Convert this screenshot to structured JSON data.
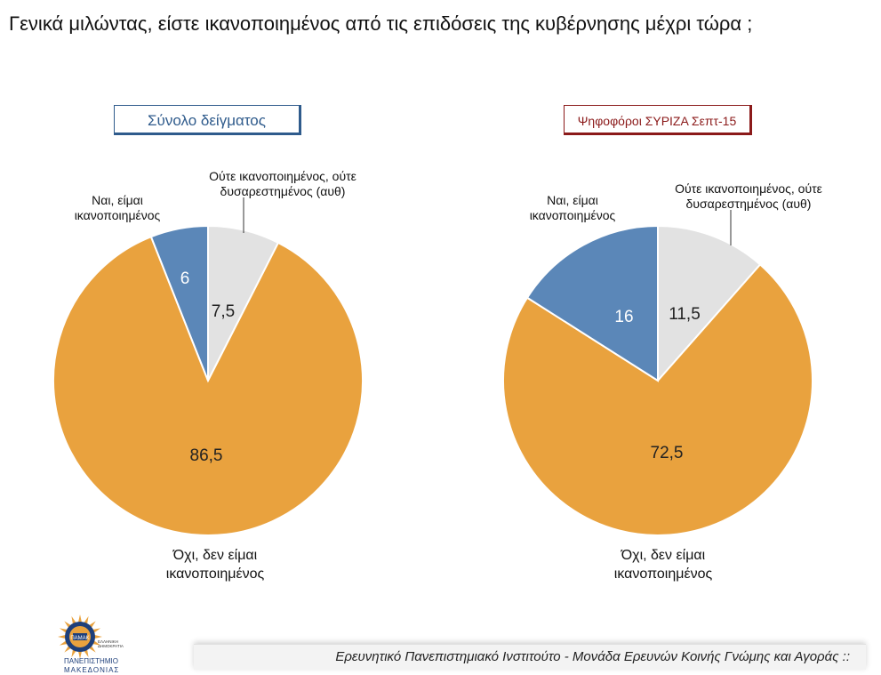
{
  "page": {
    "title": "Γενικά μιλώντας, είστε ικανοποιημένος από τις επιδόσεις της κυβέρνησης μέχρι τώρα ;"
  },
  "panels": [
    {
      "label": "Σύνολο δείγματος",
      "color": "#2F5B8C"
    },
    {
      "label": "Ψηφοφόροι ΣΥΡΙΖΑ Σεπτ-15",
      "color": "#8B1A1A"
    }
  ],
  "chart_data": [
    {
      "type": "pie",
      "title": "Σύνολο δείγματος",
      "categories": [
        "Ναι, είμαι ικανοποιημένος",
        "Ούτε ικανοποιημένος, ούτε δυσαρεστημένος (αυθ)",
        "Όχι, δεν είμαι ικανοποιημένος"
      ],
      "values": [
        6,
        7.5,
        86.5
      ],
      "value_labels": [
        "6",
        "7,5",
        "86,5"
      ],
      "colors": [
        "#5B87B8",
        "#E2E2E2",
        "#E9A23E"
      ],
      "label_lines": {
        "yes": [
          "Ναι, είμαι",
          "ικανοποιημένος"
        ],
        "neutral": [
          "Ούτε ικανοποιημένος, ούτε",
          "δυσαρεστημένος (αυθ)"
        ],
        "no": [
          "Όχι, δεν είμαι",
          "ικανοποιημένος"
        ]
      }
    },
    {
      "type": "pie",
      "title": "Ψηφοφόροι ΣΥΡΙΖΑ Σεπτ-15",
      "categories": [
        "Ναι, είμαι ικανοποιημένος",
        "Ούτε ικανοποιημένος, ούτε δυσαρεστημένος (αυθ)",
        "Όχι, δεν είμαι ικανοποιημένος"
      ],
      "values": [
        16,
        11.5,
        72.5
      ],
      "value_labels": [
        "16",
        "11,5",
        "72,5"
      ],
      "colors": [
        "#5B87B8",
        "#E2E2E2",
        "#E9A23E"
      ],
      "label_lines": {
        "yes": [
          "Ναι, είμαι",
          "ικανοποιημένος"
        ],
        "neutral": [
          "Ούτε ικανοποιημένος, ούτε",
          "δυσαρεστημένος (αυθ)"
        ],
        "no": [
          "Όχι, δεν είμαι",
          "ικανοποιημένος"
        ]
      }
    }
  ],
  "footer": {
    "text": "Ερευνητικό Πανεπιστημιακό Ινστιτούτο - Μονάδα Ερευνών Κοινής Γνώμης και Αγοράς ::",
    "logo": {
      "line1": "ΠΑΝΕΠΙΣΤΗΜΙΟ",
      "line2": "ΜΑΚΕΔΟΝΙΑΣ",
      "small1": "ΕΛΛΗΝΙΚΗ",
      "small2": "ΔΗΜΟΚΡΑΤΙΑ",
      "emblem": "ΠΑΜΑΚ"
    }
  }
}
